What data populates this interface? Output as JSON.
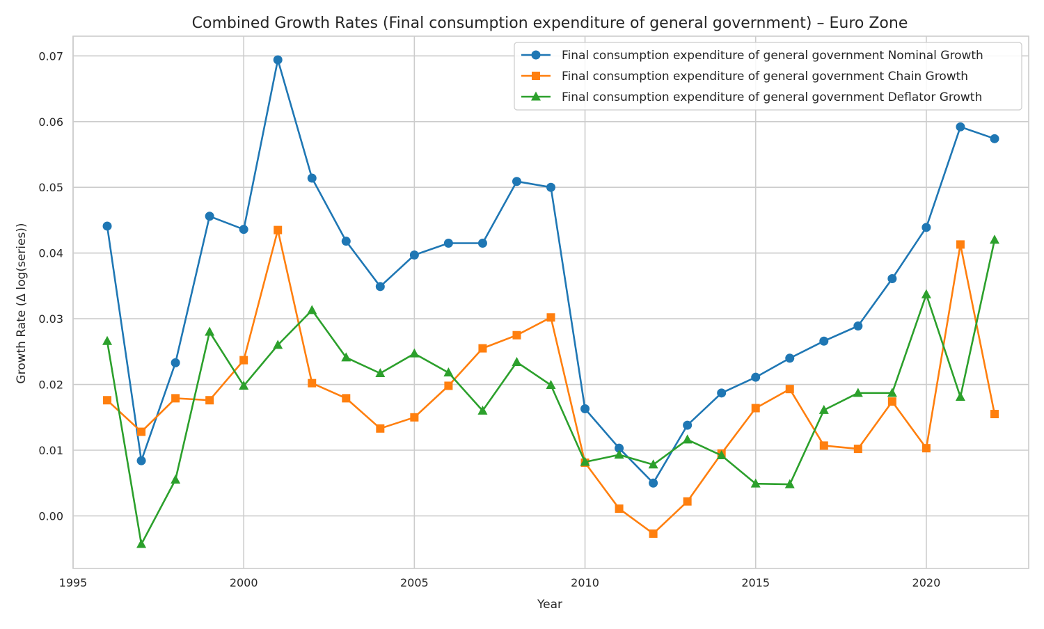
{
  "chart_data": {
    "type": "line",
    "title": "Combined Growth Rates (Final consumption expenditure of general government) – Euro Zone",
    "xlabel": "Year",
    "ylabel": "Growth Rate (Δ log(series))",
    "xlim": [
      1995,
      2023
    ],
    "ylim": [
      -0.008,
      0.073
    ],
    "x_ticks": [
      1995,
      2000,
      2005,
      2010,
      2015,
      2020
    ],
    "y_ticks": [
      0.0,
      0.01,
      0.02,
      0.03,
      0.04,
      0.05,
      0.06,
      0.07
    ],
    "y_tick_labels": [
      "0.00",
      "0.01",
      "0.02",
      "0.03",
      "0.04",
      "0.05",
      "0.06",
      "0.07"
    ],
    "grid": true,
    "legend_position": "top-right",
    "x": [
      1996,
      1997,
      1998,
      1999,
      2000,
      2001,
      2002,
      2003,
      2004,
      2005,
      2006,
      2007,
      2008,
      2009,
      2010,
      2011,
      2012,
      2013,
      2014,
      2015,
      2016,
      2017,
      2018,
      2019,
      2020,
      2021,
      2022
    ],
    "series": [
      {
        "name": "Final consumption expenditure of general government Nominal Growth",
        "color": "#1f77b4",
        "marker": "circle",
        "values": [
          0.0441,
          0.0084,
          0.0233,
          0.0456,
          0.0436,
          0.0694,
          0.0514,
          0.0418,
          0.0349,
          0.0397,
          0.0415,
          0.0415,
          0.0509,
          0.05,
          0.0163,
          0.0103,
          0.005,
          0.0138,
          0.0187,
          0.0211,
          0.024,
          0.0266,
          0.0289,
          0.0361,
          0.0439,
          0.0592,
          0.0574
        ]
      },
      {
        "name": "Final consumption expenditure of general government Chain Growth",
        "color": "#ff7f0e",
        "marker": "square",
        "values": [
          0.0176,
          0.0128,
          0.0179,
          0.0176,
          0.0237,
          0.0435,
          0.0202,
          0.0179,
          0.0133,
          0.015,
          0.0198,
          0.0255,
          0.0275,
          0.0302,
          0.0081,
          0.0011,
          -0.0027,
          0.0022,
          0.0095,
          0.0164,
          0.0193,
          0.0107,
          0.0102,
          0.0174,
          0.0103,
          0.0413,
          0.0155
        ]
      },
      {
        "name": "Final consumption expenditure of general government Deflator Growth",
        "color": "#2ca02c",
        "marker": "triangle",
        "values": [
          0.0266,
          -0.0043,
          0.0055,
          0.028,
          0.0198,
          0.026,
          0.0313,
          0.0241,
          0.0217,
          0.0247,
          0.0218,
          0.016,
          0.0234,
          0.0199,
          0.0082,
          0.0093,
          0.0078,
          0.0116,
          0.0092,
          0.0049,
          0.0048,
          0.0161,
          0.0187,
          0.0187,
          0.0337,
          0.0181,
          0.042
        ]
      }
    ]
  }
}
